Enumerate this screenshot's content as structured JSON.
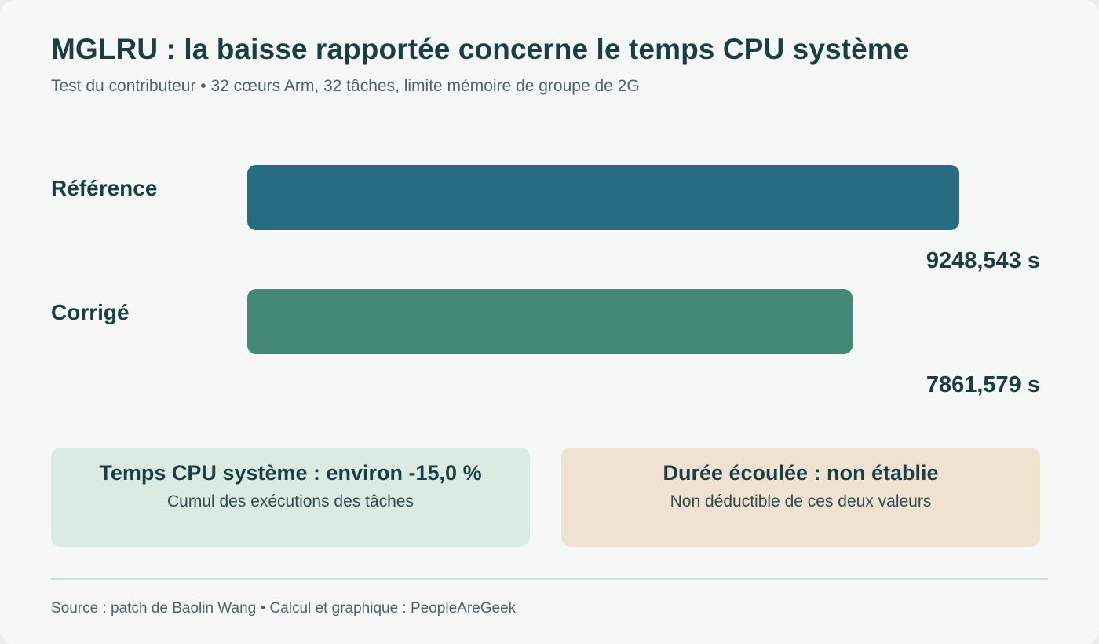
{
  "chart_data": {
    "type": "bar",
    "orientation": "horizontal",
    "title": "MGLRU : la baisse rapportée concerne le temps CPU système",
    "subtitle": "Test du contributeur • 32 cœurs Arm, 32 tâches, limite mémoire de groupe de 2G",
    "categories": [
      "Référence",
      "Corrigé"
    ],
    "values": [
      9248.543,
      7861.579
    ],
    "value_labels": [
      "9248,543 s",
      "7861,579 s"
    ],
    "colors": [
      "#286c82",
      "#428875"
    ],
    "xlim": [
      0,
      9248.543
    ],
    "grid": false,
    "legend": "none"
  },
  "callouts": [
    {
      "title": "Temps CPU système : environ -15,0 %",
      "text": "Cumul des exécutions des tâches",
      "color": "#dcebe2"
    },
    {
      "title": "Durée écoulée : non établie",
      "text": "Non déductible de ces deux valeurs",
      "color": "#efe2d1"
    }
  ],
  "footer": {
    "source": "Source : patch de Baolin Wang • Calcul et graphique : PeopleAreGeek"
  }
}
